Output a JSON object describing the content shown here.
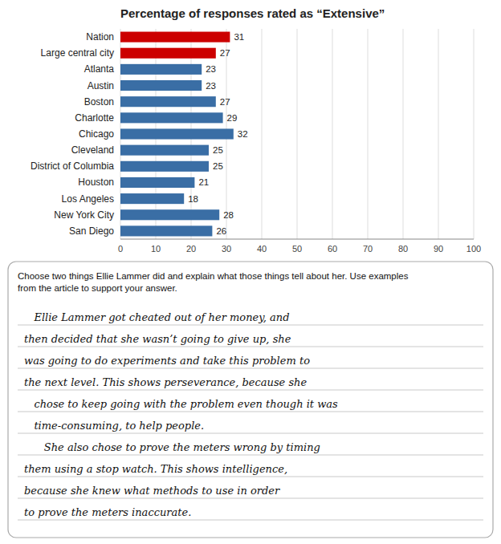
{
  "chart_data": {
    "type": "bar",
    "orientation": "horizontal",
    "title": "Percentage of responses rated as “Extensive”",
    "categories": [
      "Nation",
      "Large central city",
      "Atlanta",
      "Austin",
      "Boston",
      "Charlotte",
      "Chicago",
      "Cleveland",
      "District of Columbia",
      "Houston",
      "Los Angeles",
      "New York City",
      "San Diego"
    ],
    "values": [
      31,
      27,
      23,
      23,
      27,
      29,
      32,
      25,
      25,
      21,
      18,
      28,
      26
    ],
    "colors": [
      "#cc0000",
      "#cc0000",
      "#3a6ea5",
      "#3a6ea5",
      "#3a6ea5",
      "#3a6ea5",
      "#3a6ea5",
      "#3a6ea5",
      "#3a6ea5",
      "#3a6ea5",
      "#3a6ea5",
      "#3a6ea5",
      "#3a6ea5"
    ],
    "xlim": [
      0,
      100
    ],
    "xticks": [
      0,
      10,
      20,
      30,
      40,
      50,
      60,
      70,
      80,
      90,
      100
    ],
    "grid": true,
    "data_labels": true,
    "annotations": [
      "Choose two things Ellie Lammer did and explain what those things tell about her. Use examples",
      "from the article to support your answer.",
      "   Ellie Lammer got cheated out of her money, and",
      "then decided that she wasn’t going to give up, she",
      "was going to do experiments and take this problem to",
      "the next level. This shows perseverance, because she",
      "   chose to keep going with the problem even though it was",
      "   time-consuming, to help people.",
      "      She also chose to prove the meters wrong by timing",
      "them using a stop watch. This shows intelligence,",
      "because she knew what methods to use in order",
      "to prove the meters inaccurate."
    ]
  }
}
